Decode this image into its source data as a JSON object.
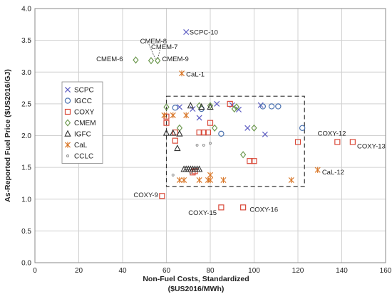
{
  "chart_data": {
    "type": "scatter",
    "xlabel": [
      "Non-Fuel Costs, Standardized",
      "($US2016/MWh)"
    ],
    "ylabel": "As-Reported Fuel Price ($US2016/GJ)",
    "xlim": [
      0,
      160
    ],
    "ylim": [
      0,
      4.0
    ],
    "x_ticks": [
      0,
      20,
      40,
      60,
      80,
      100,
      120,
      140,
      160
    ],
    "y_ticks": [
      0.0,
      0.5,
      1.0,
      1.5,
      2.0,
      2.5,
      3.0,
      3.5,
      4.0
    ],
    "grid": true,
    "legend_position": "left-middle",
    "highlight_box": {
      "x": [
        60,
        123
      ],
      "y": [
        1.2,
        2.62
      ],
      "style": "dashed"
    },
    "series": [
      {
        "name": "SCPC",
        "marker": "x",
        "color": "#5b5bc2",
        "x": [
          69,
          66,
          72,
          75,
          83,
          90,
          93,
          97,
          103,
          105
        ],
        "y": [
          3.63,
          2.45,
          2.42,
          2.28,
          2.5,
          2.48,
          2.41,
          2.12,
          2.48,
          2.02
        ]
      },
      {
        "name": "IGCC",
        "marker": "circle",
        "color": "#4a72b0",
        "x": [
          64,
          76,
          85,
          104,
          108,
          111,
          122
        ],
        "y": [
          2.44,
          2.42,
          2.03,
          2.46,
          2.46,
          2.46,
          2.12
        ]
      },
      {
        "name": "COXY",
        "marker": "square",
        "color": "#d94a3a",
        "x": [
          58,
          60,
          60,
          64,
          64,
          72,
          73,
          75,
          77,
          79,
          80,
          89,
          98,
          100,
          120,
          138,
          145,
          85,
          95
        ],
        "y": [
          1.05,
          2.2,
          2.3,
          1.92,
          2.05,
          1.42,
          1.44,
          2.05,
          2.05,
          2.05,
          2.2,
          2.5,
          1.6,
          1.6,
          1.9,
          1.9,
          1.9,
          0.87,
          0.87
        ]
      },
      {
        "name": "CMEM",
        "marker": "diamond",
        "color": "#6f9a52",
        "x": [
          46,
          53,
          56,
          60,
          66,
          75,
          80,
          82,
          91,
          92,
          95,
          100
        ],
        "y": [
          3.19,
          3.18,
          3.18,
          2.45,
          2.12,
          2.47,
          2.47,
          2.12,
          2.42,
          2.45,
          1.7,
          2.12
        ]
      },
      {
        "name": "IGFC",
        "marker": "triangle",
        "color": "#333333",
        "x": [
          60,
          63,
          66,
          71,
          76,
          80,
          65,
          68,
          69,
          70,
          71,
          72,
          73,
          74,
          75
        ],
        "y": [
          2.04,
          2.04,
          2.03,
          2.47,
          2.45,
          2.45,
          1.8,
          1.47,
          1.47,
          1.47,
          1.47,
          1.47,
          1.47,
          1.47,
          1.47
        ]
      },
      {
        "name": "CaL",
        "marker": "asterisk",
        "color": "#d9782a",
        "x": [
          67,
          59,
          63,
          69,
          66,
          68,
          75,
          80,
          80,
          79,
          86,
          129,
          117
        ],
        "y": [
          2.98,
          2.32,
          2.32,
          2.32,
          1.3,
          1.3,
          1.3,
          1.3,
          1.38,
          1.3,
          1.3,
          1.46,
          1.3
        ]
      },
      {
        "name": "CCLC",
        "marker": "dot",
        "color": "#8a8a8a",
        "x": [
          63,
          71,
          74,
          77,
          80
        ],
        "y": [
          1.38,
          1.42,
          1.85,
          1.85,
          1.88
        ]
      }
    ],
    "annotations": [
      {
        "text": "SCPC-10",
        "x": 70.5,
        "y": 3.63,
        "anchor": "start"
      },
      {
        "text": "CMEM-8",
        "x": 48,
        "y": 3.49,
        "anchor": "start"
      },
      {
        "text": "CMEM-7",
        "x": 53,
        "y": 3.4,
        "anchor": "start"
      },
      {
        "text": "CMEM-6",
        "x": 28,
        "y": 3.21,
        "anchor": "start"
      },
      {
        "text": "CMEM-9",
        "x": 58,
        "y": 3.21,
        "anchor": "start"
      },
      {
        "text": "CaL-1",
        "x": 69,
        "y": 2.97,
        "anchor": "start"
      },
      {
        "text": "COXY-12",
        "x": 129,
        "y": 2.04,
        "anchor": "start"
      },
      {
        "text": "COXY-13",
        "x": 147,
        "y": 1.84,
        "anchor": "start"
      },
      {
        "text": "CaL-12",
        "x": 131,
        "y": 1.43,
        "anchor": "start"
      },
      {
        "text": "COXY-9",
        "x": 45,
        "y": 1.07,
        "anchor": "start"
      },
      {
        "text": "COXY-15",
        "x": 70,
        "y": 0.79,
        "anchor": "start"
      },
      {
        "text": "COXY-16",
        "x": 98,
        "y": 0.84,
        "anchor": "start"
      }
    ],
    "leader_lines": [
      {
        "from": [
          52,
          3.44
        ],
        "to": [
          55,
          3.2
        ]
      },
      {
        "from": [
          57,
          3.35
        ],
        "to": [
          56,
          3.2
        ]
      }
    ]
  }
}
